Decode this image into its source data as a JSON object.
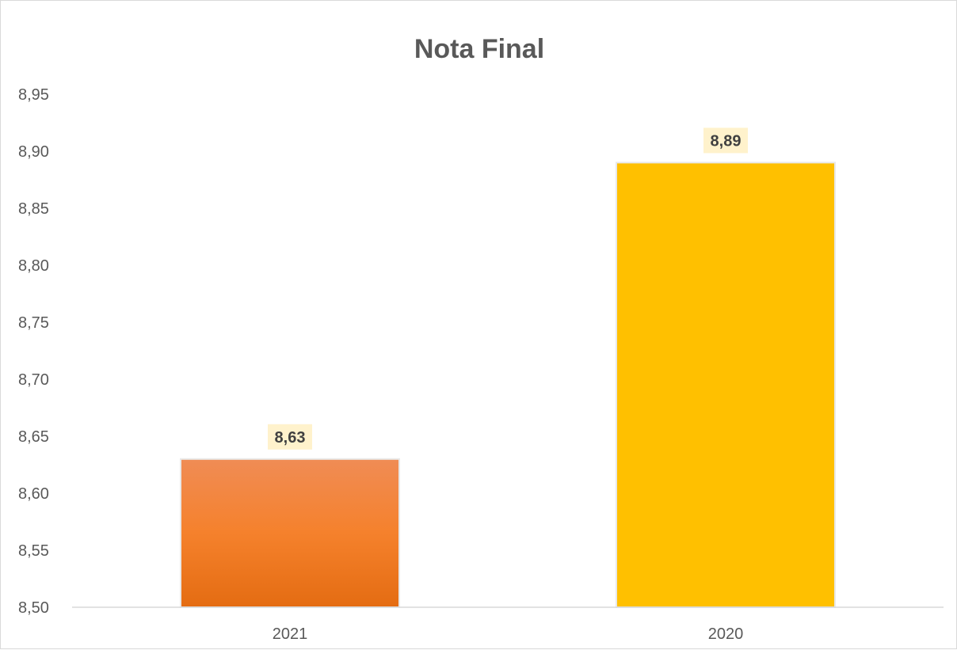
{
  "chart_data": {
    "type": "bar",
    "title": "Nota Final",
    "categories": [
      "2021",
      "2020"
    ],
    "values": [
      8.63,
      8.89
    ],
    "value_labels": [
      "8,63",
      "8,89"
    ],
    "ylim": [
      8.5,
      8.95
    ],
    "yticks": [
      "8,50",
      "8,55",
      "8,60",
      "8,65",
      "8,70",
      "8,75",
      "8,80",
      "8,85",
      "8,90",
      "8,95"
    ],
    "ytick_values": [
      8.5,
      8.55,
      8.6,
      8.65,
      8.7,
      8.75,
      8.8,
      8.85,
      8.9,
      8.95
    ],
    "grid": false,
    "legend": "none",
    "xlabel": "",
    "ylabel": "",
    "colors": {
      "bars": [
        "#ED7D31",
        "#FFC000"
      ],
      "bar_gradient_top": "#F08C55",
      "bar_gradient_bottom": "#E46C12",
      "label_background": "#FFF2CC",
      "axis": "#d9d9d9",
      "text": "#595959"
    }
  }
}
